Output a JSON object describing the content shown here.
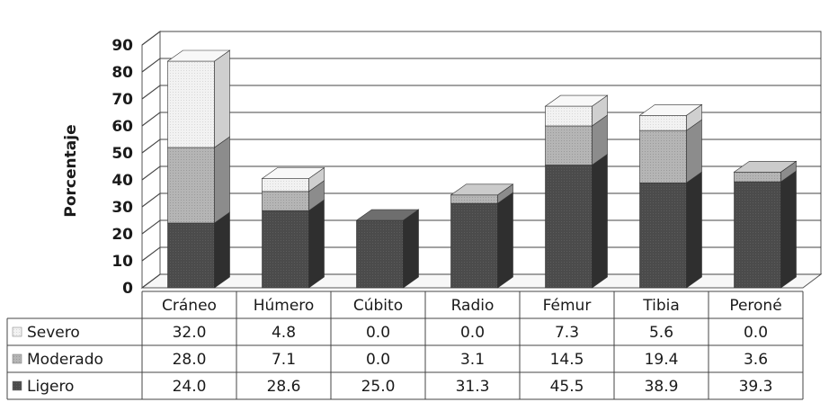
{
  "chart_data": {
    "type": "bar",
    "stacked": true,
    "three_d": true,
    "ylabel": "Porcentaje",
    "xlabel": "",
    "ylim": [
      0,
      90
    ],
    "yticks": [
      "0",
      "10",
      "20",
      "30",
      "40",
      "50",
      "60",
      "70",
      "80",
      "90"
    ],
    "categories": [
      "Cráneo",
      "Húmero",
      "Cúbito",
      "Radio",
      "Fémur",
      "Tibia",
      "Peroné"
    ],
    "series": [
      {
        "name": "Ligero",
        "values": [
          24.0,
          28.6,
          25.0,
          31.3,
          45.5,
          38.9,
          39.3
        ],
        "labels": [
          "24.0",
          "28.6",
          "25.0",
          "31.3",
          "45.5",
          "38.9",
          "39.3"
        ],
        "color": "#4a4a4a"
      },
      {
        "name": "Moderado",
        "values": [
          28.0,
          7.1,
          0.0,
          3.1,
          14.5,
          19.4,
          3.6
        ],
        "labels": [
          "28.0",
          "7.1",
          "0.0",
          "3.1",
          "14.5",
          "19.4",
          "3.6"
        ],
        "color": "#b3b3b3"
      },
      {
        "name": "Severo",
        "values": [
          32.0,
          4.8,
          0.0,
          0.0,
          7.3,
          5.6,
          0.0
        ],
        "labels": [
          "32.0",
          "4.8",
          "0.0",
          "0.0",
          "7.3",
          "5.6",
          "0.0"
        ],
        "color": "#efefef"
      }
    ],
    "table_row_order": [
      "Severo",
      "Moderado",
      "Ligero"
    ],
    "grid": true,
    "legend": "data-table"
  }
}
